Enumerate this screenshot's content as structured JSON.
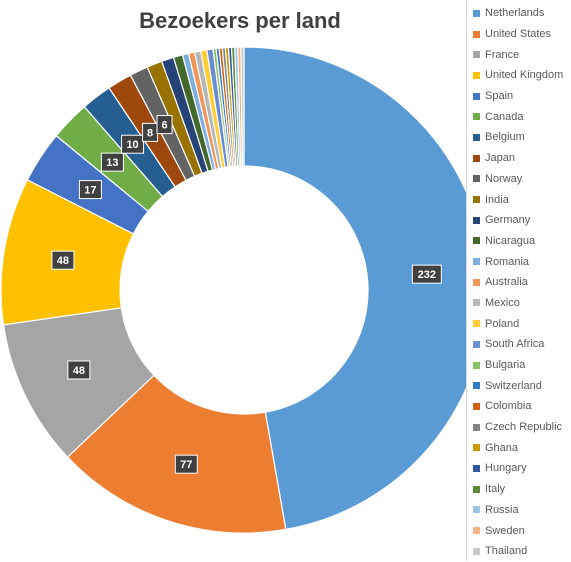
{
  "chart_data": {
    "type": "pie",
    "variant": "doughnut",
    "title": "Bezoekers per land",
    "legend_position": "right",
    "categories": [
      "Netherlands",
      "United States",
      "France",
      "United Kingdom",
      "Spain",
      "Canada",
      "Belgium",
      "Japan",
      "Norway",
      "India",
      "Germany",
      "Nicaragua",
      "Romania",
      "Australia",
      "Mexico",
      "Poland",
      "South Africa",
      "Bulgaria",
      "Switzerland",
      "Colombia",
      "Czech Republic",
      "Ghana",
      "Hungary",
      "Italy",
      "Russia",
      "Sweden",
      "Thailand"
    ],
    "values": [
      232,
      77,
      48,
      48,
      17,
      13,
      10,
      8,
      6,
      5,
      4,
      3,
      2,
      2,
      2,
      2,
      2,
      1,
      1,
      1,
      1,
      1,
      1,
      1,
      1,
      1,
      1
    ],
    "data_labels": [
      "232",
      "77",
      "48",
      "48",
      "17",
      "13",
      "10",
      "8",
      "6",
      "",
      "",
      "",
      "",
      "",
      "",
      "",
      "",
      "",
      "",
      "",
      "",
      "",
      "",
      "",
      "",
      "",
      ""
    ],
    "colors": [
      "#5B9BD5",
      "#ED7D31",
      "#A5A5A5",
      "#FFC000",
      "#4472C4",
      "#70AD47",
      "#255E91",
      "#9E480E",
      "#636363",
      "#997300",
      "#264478",
      "#43682B",
      "#7CAFDD",
      "#F1975A",
      "#B7B7B7",
      "#FFCD33",
      "#698ED0",
      "#8CC168",
      "#327DC2",
      "#D26012",
      "#848484",
      "#CC9A00",
      "#335AA1",
      "#5A8A39",
      "#9DC3E6",
      "#F4B183",
      "#C9C9C9"
    ]
  }
}
